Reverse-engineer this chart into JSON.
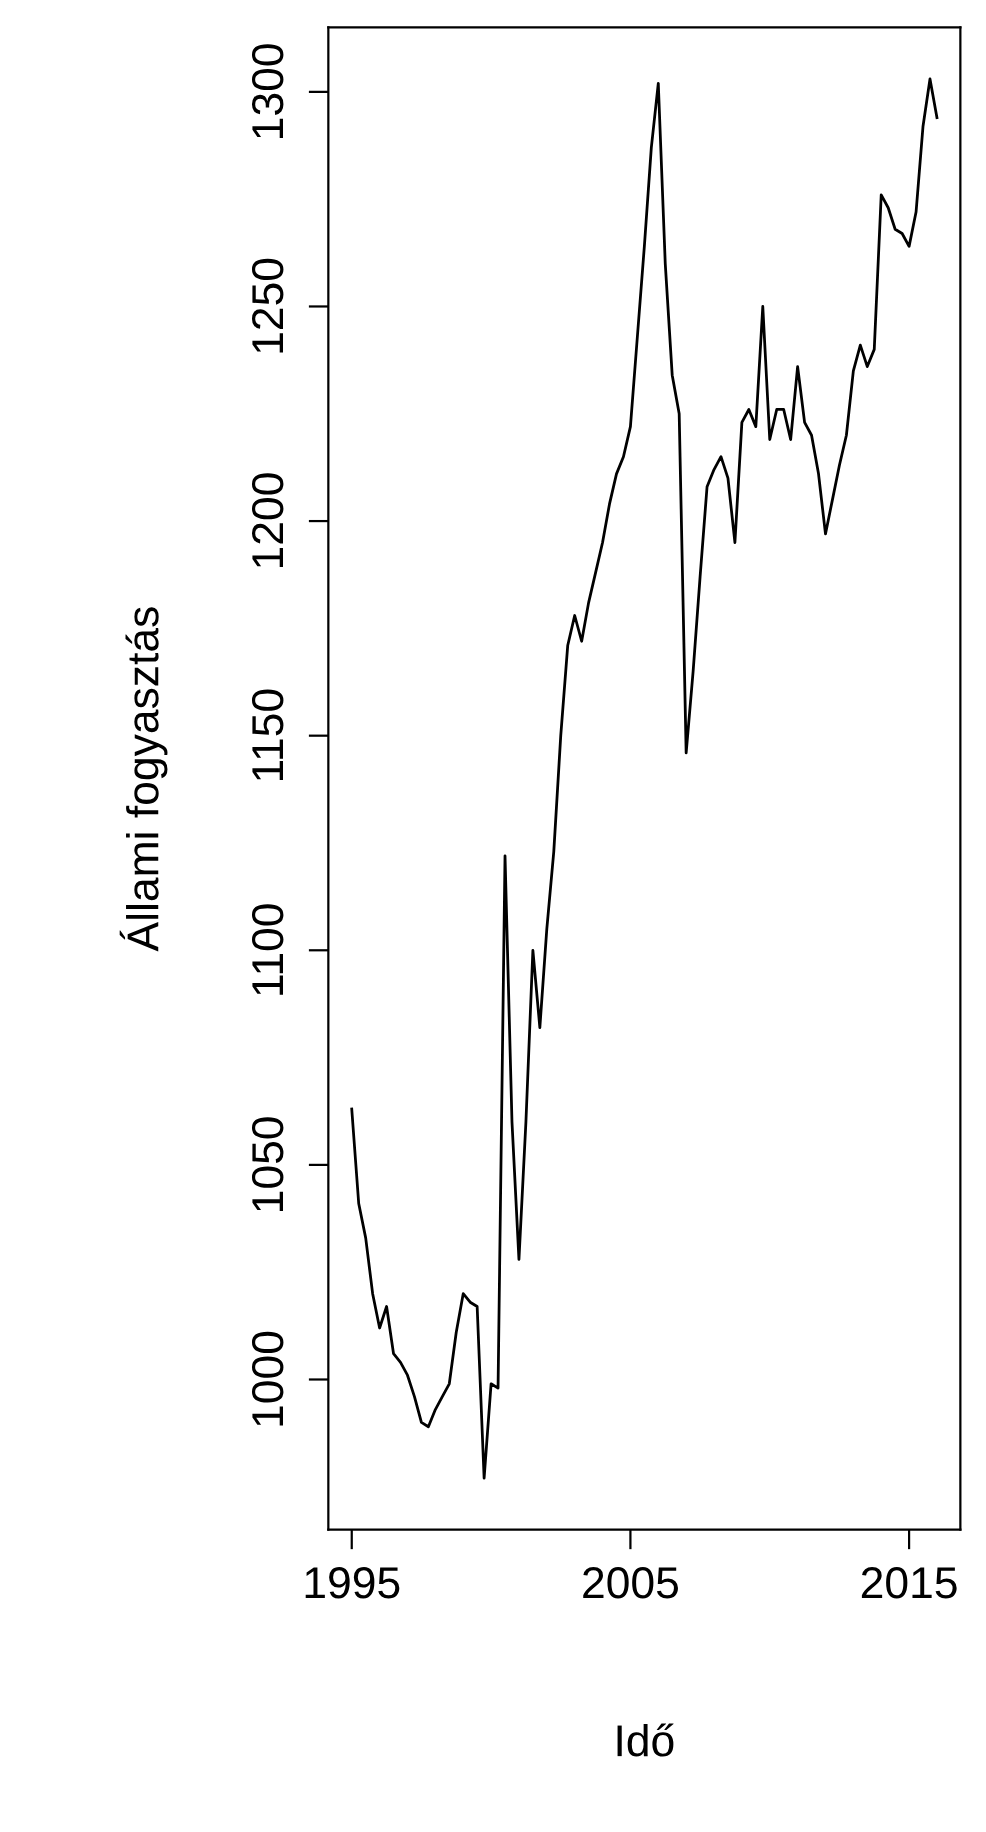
{
  "chart_data": {
    "type": "line",
    "xlabel": "Idő",
    "ylabel": "Állami fogyasztás",
    "x": [
      1995,
      1995.25,
      1995.5,
      1995.75,
      1996,
      1996.25,
      1996.5,
      1996.75,
      1997,
      1997.25,
      1997.5,
      1997.75,
      1998,
      1998.25,
      1998.5,
      1998.75,
      1999,
      1999.25,
      1999.5,
      1999.75,
      2000,
      2000.25,
      2000.5,
      2000.75,
      2001,
      2001.25,
      2001.5,
      2001.75,
      2002,
      2002.25,
      2002.5,
      2002.75,
      2003,
      2003.25,
      2003.5,
      2003.75,
      2004,
      2004.25,
      2004.5,
      2004.75,
      2005,
      2005.25,
      2005.5,
      2005.75,
      2006,
      2006.25,
      2006.5,
      2006.75,
      2007,
      2007.25,
      2007.5,
      2007.75,
      2008,
      2008.25,
      2008.5,
      2008.75,
      2009,
      2009.25,
      2009.5,
      2009.75,
      2010,
      2010.25,
      2010.5,
      2010.75,
      2011,
      2011.25,
      2011.5,
      2011.75,
      2012,
      2012.25,
      2012.5,
      2012.75,
      2013,
      2013.25,
      2013.5,
      2013.75,
      2014,
      2014.25,
      2014.5,
      2014.75,
      2015,
      2015.25,
      2015.5,
      2015.75,
      2016
    ],
    "series": [
      {
        "color": "#000000",
        "values": [
          1063,
          1041,
          1033,
          1020,
          1012,
          1017,
          1006,
          1004,
          1001,
          996,
          990,
          989,
          993,
          996,
          999,
          1011,
          1020,
          1018,
          1017,
          977,
          999,
          998,
          1122,
          1060,
          1028,
          1060,
          1100,
          1082,
          1105,
          1123,
          1150,
          1171,
          1178,
          1172,
          1181,
          1188,
          1195,
          1204,
          1211,
          1215,
          1222,
          1243,
          1264,
          1287,
          1302,
          1260,
          1234,
          1225,
          1146,
          1165,
          1187,
          1208,
          1212,
          1215,
          1210,
          1195,
          1223,
          1226,
          1222,
          1250,
          1219,
          1226,
          1226,
          1219,
          1236,
          1223,
          1220,
          1211,
          1197,
          1205,
          1213,
          1220,
          1235,
          1241,
          1236,
          1240,
          1276,
          1273,
          1268,
          1267,
          1264,
          1272,
          1292,
          1303,
          1294
        ]
      }
    ],
    "xlim": [
      1994.16,
      2016.84
    ],
    "ylim": [
      965,
      1315
    ],
    "xticks": [
      1995,
      2005,
      2015
    ],
    "yticks": [
      1000,
      1050,
      1100,
      1150,
      1200,
      1250,
      1300
    ],
    "grid": false,
    "legend": false,
    "line_style": "solid",
    "marker": "none"
  }
}
